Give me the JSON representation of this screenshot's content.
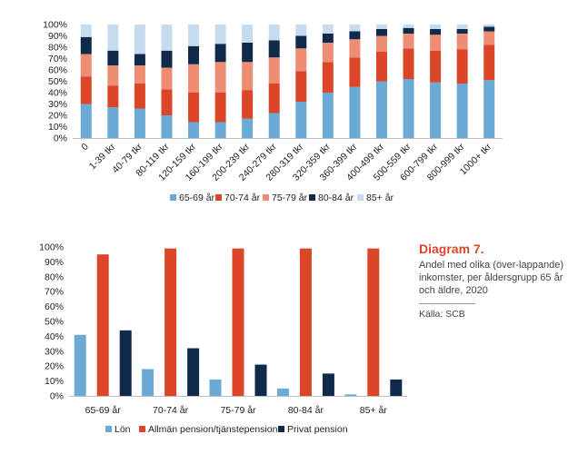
{
  "colors": {
    "c1": "#6aaad4",
    "c2": "#db4528",
    "c3": "#ee8c74",
    "c4": "#102a4c",
    "c5": "#c6dcee"
  },
  "caption": {
    "title": "Diagram 7.",
    "text": "Andel med olika (över-lappande) inkomster, per åldersgrupp 65 år och äldre, 2020",
    "source": "Källa: SCB"
  },
  "chart_data": [
    {
      "type": "bar",
      "stacked": true,
      "categories": [
        "0",
        "1-39 tkr",
        "40-79 tkr",
        "80-119 tkr",
        "120-159 tkr",
        "160-199 tkr",
        "200-239 tkr",
        "240-279 tkr",
        "280-319 tkr",
        "320-359 tkr",
        "360-399 tkr",
        "400-499 tkr",
        "500-559 tkr",
        "600-799 tkr",
        "800-999 tkr",
        "1000+ tkr"
      ],
      "y_ticks": [
        "0%",
        "10%",
        "20%",
        "30%",
        "40%",
        "50%",
        "60%",
        "70%",
        "80%",
        "90%",
        "100%"
      ],
      "ylim": [
        0,
        100
      ],
      "legend_position": "bottom",
      "series": [
        {
          "name": "65-69 år",
          "color_key": "c1",
          "values": [
            30,
            27,
            26,
            20,
            14,
            14,
            17,
            22,
            32,
            40,
            45,
            50,
            52,
            49,
            48,
            51
          ]
        },
        {
          "name": "70-74 år",
          "color_key": "c2",
          "values": [
            24,
            19,
            22,
            23,
            26,
            26,
            25,
            26,
            27,
            27,
            26,
            26,
            27,
            28,
            30,
            31
          ]
        },
        {
          "name": "75-79 år",
          "color_key": "c3",
          "values": [
            20,
            18,
            16,
            19,
            25,
            27,
            25,
            23,
            20,
            17,
            16,
            14,
            13,
            14,
            14,
            12
          ]
        },
        {
          "name": "80-84 år",
          "color_key": "c4",
          "values": [
            15,
            13,
            10,
            15,
            16,
            16,
            17,
            15,
            11,
            8,
            7,
            6,
            5,
            5,
            4,
            4
          ]
        },
        {
          "name": "85+ år",
          "color_key": "c5",
          "values": [
            11,
            23,
            26,
            23,
            19,
            17,
            16,
            14,
            10,
            8,
            6,
            4,
            3,
            4,
            4,
            2
          ]
        }
      ]
    },
    {
      "type": "bar",
      "stacked": false,
      "categories": [
        "65-69 år",
        "70-74 år",
        "75-79 år",
        "80-84 år",
        "85+ år"
      ],
      "y_ticks": [
        "0%",
        "10%",
        "20%",
        "30%",
        "40%",
        "50%",
        "60%",
        "70%",
        "80%",
        "90%",
        "100%"
      ],
      "ylim": [
        0,
        100
      ],
      "legend_position": "bottom",
      "series": [
        {
          "name": "Lön",
          "color_key": "c1",
          "values": [
            41,
            18,
            11,
            5,
            1
          ]
        },
        {
          "name": "Allmän pension/tjänstepension",
          "color_key": "c2",
          "values": [
            95,
            99,
            99,
            99,
            99
          ]
        },
        {
          "name": "Privat pension",
          "color_key": "c4",
          "values": [
            44,
            32,
            21,
            15,
            11
          ]
        }
      ]
    }
  ]
}
